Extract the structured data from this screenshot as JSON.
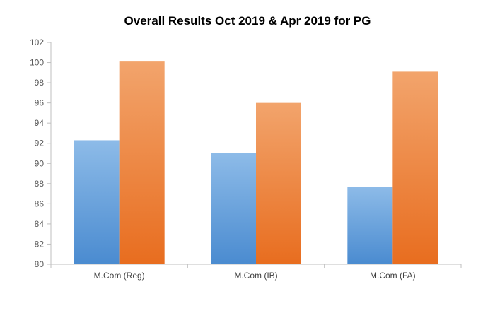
{
  "chart_data": {
    "type": "bar",
    "title": "Overall Results Oct 2019 & Apr 2019 for PG",
    "categories": [
      "M.Com (Reg)",
      "M.Com (IB)",
      "M.Com (FA)"
    ],
    "series": [
      {
        "values": [
          92.3,
          91.0,
          87.7
        ],
        "color": "#5b9bd5"
      },
      {
        "values": [
          100.1,
          96.0,
          99.1
        ],
        "color": "#ed7d31"
      }
    ],
    "ylim": [
      80,
      102
    ],
    "yticks": [
      80,
      82,
      84,
      86,
      88,
      90,
      92,
      94,
      96,
      98,
      100,
      102
    ],
    "grid": false,
    "legend": "none",
    "xlabel": "",
    "ylabel": ""
  }
}
